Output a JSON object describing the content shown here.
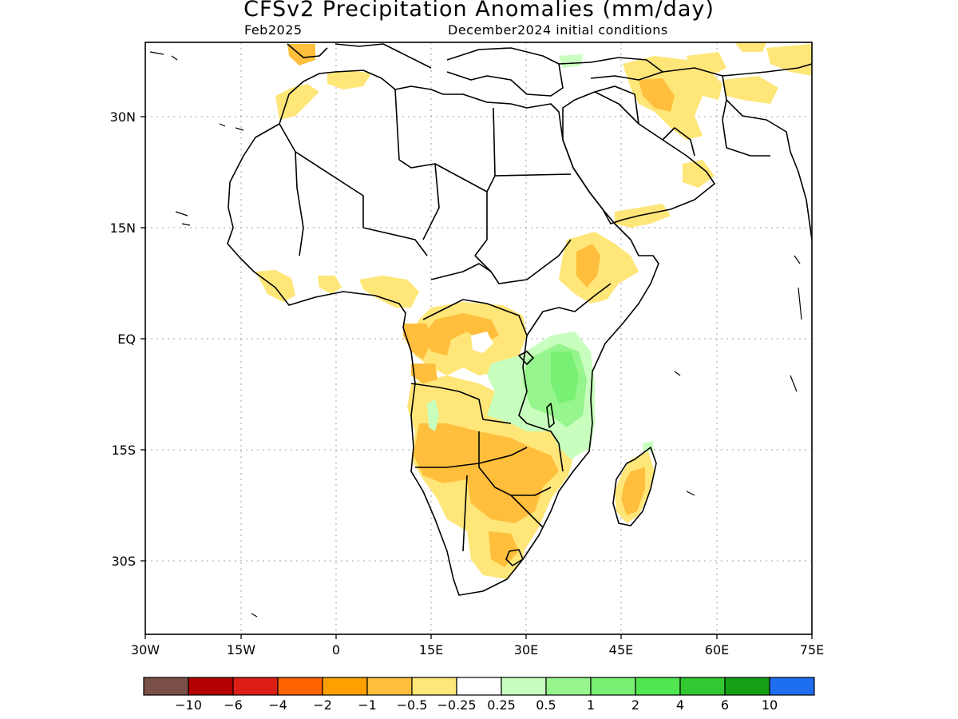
{
  "title": "CFSv2 Precipitation Anomalies (mm/day)",
  "subtitle_left": "Feb2025",
  "subtitle_right": "December2024 initial conditions",
  "lat_labels": [
    "30N",
    "15N",
    "EQ",
    "15S",
    "30S"
  ],
  "lon_labels": [
    "30W",
    "15W",
    "0",
    "15E",
    "30E",
    "45E",
    "60E",
    "75E"
  ],
  "colorbar": {
    "colors": [
      "#7a5046",
      "#b40000",
      "#dc1e14",
      "#ff6400",
      "#ffa000",
      "#ffbe3c",
      "#ffe678",
      "#ffffff",
      "#c8ffbe",
      "#96f58c",
      "#78f073",
      "#50e650",
      "#32c832",
      "#14a014",
      "#1e6ef0"
    ],
    "labels": [
      "−10",
      "−6",
      "−4",
      "−2",
      "−1",
      "−0.5",
      "−0.25",
      "0.25",
      "0.5",
      "1",
      "2",
      "4",
      "6",
      "10"
    ]
  }
}
